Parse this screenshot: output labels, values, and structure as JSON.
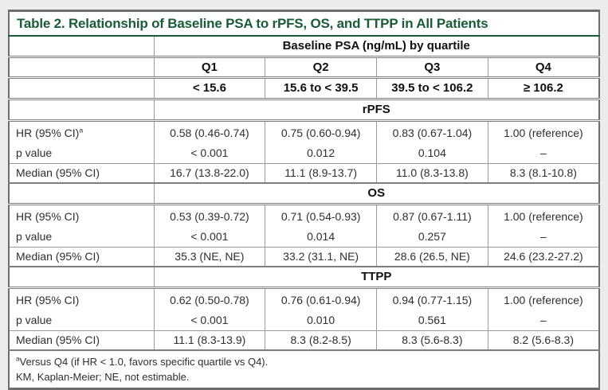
{
  "page": {
    "background": "#ececec"
  },
  "table": {
    "title": "Table 2. Relationship of Baseline PSA to rPFS, OS, and TTPP in All Patients",
    "accent_color": "#1a5c38",
    "border_color": "#6d6d6d",
    "header": {
      "group_label": "Baseline PSA (ng/mL) by quartile",
      "quartiles": [
        "Q1",
        "Q2",
        "Q3",
        "Q4"
      ],
      "ranges": [
        "< 15.6",
        "15.6 to < 39.5",
        "39.5 to < 106.2",
        "≥ 106.2"
      ]
    },
    "row_labels": {
      "hr": "HR (95% CI)",
      "p": "p value",
      "median": "Median (95% CI)"
    },
    "sections": [
      {
        "name": "rPFS",
        "hr_sup": "a",
        "hr": [
          "0.58 (0.46-0.74)",
          "0.75 (0.60-0.94)",
          "0.83 (0.67-1.04)",
          "1.00 (reference)"
        ],
        "p": [
          "< 0.001",
          "0.012",
          "0.104",
          "–"
        ],
        "median": [
          "16.7 (13.8-22.0)",
          "11.1 (8.9-13.7)",
          "11.0 (8.3-13.8)",
          "8.3 (8.1-10.8)"
        ]
      },
      {
        "name": "OS",
        "hr_sup": "",
        "hr": [
          "0.53 (0.39-0.72)",
          "0.71 (0.54-0.93)",
          "0.87 (0.67-1.11)",
          "1.00 (reference)"
        ],
        "p": [
          "< 0.001",
          "0.014",
          "0.257",
          "–"
        ],
        "median": [
          "35.3 (NE, NE)",
          "33.2 (31.1, NE)",
          "28.6 (26.5, NE)",
          "24.6 (23.2-27.2)"
        ]
      },
      {
        "name": "TTPP",
        "hr_sup": "",
        "hr": [
          "0.62 (0.50-0.78)",
          "0.76 (0.61-0.94)",
          "0.94 (0.77-1.15)",
          "1.00 (reference)"
        ],
        "p": [
          "< 0.001",
          "0.010",
          "0.561",
          "–"
        ],
        "median": [
          "11.1 (8.3-13.9)",
          "8.3 (8.2-8.5)",
          "8.3 (5.6-8.3)",
          "8.2 (5.6-8.3)"
        ]
      }
    ],
    "footnotes": [
      {
        "sup": "a",
        "text": "Versus Q4 (if HR < 1.0, favors specific quartile vs Q4)."
      },
      {
        "sup": "",
        "text": "KM, Kaplan-Meier; NE, not estimable."
      }
    ]
  }
}
